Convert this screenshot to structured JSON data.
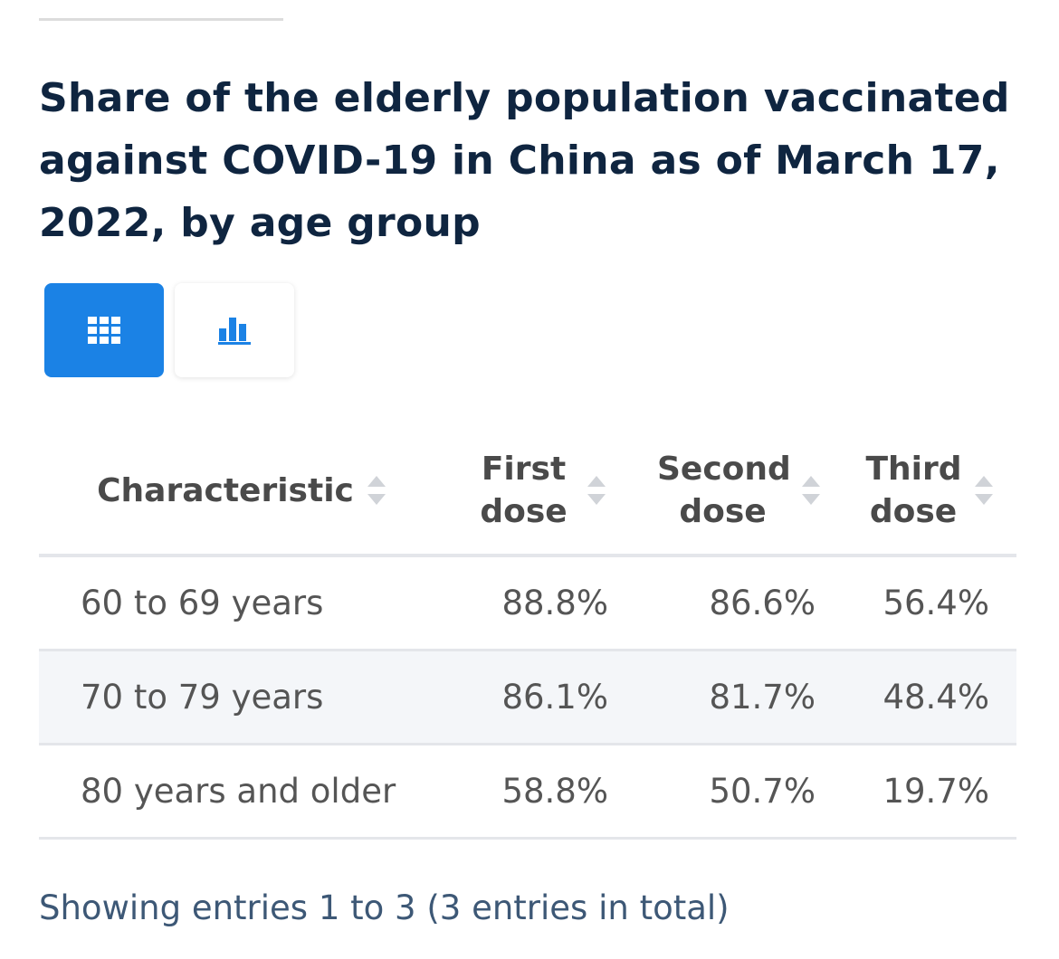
{
  "title": "Share of the elderly population vaccinated against COVID-19 in China as of March 17, 2022, by age group",
  "view_toggle": {
    "table_icon": "grid-icon",
    "chart_icon": "bar-chart-icon",
    "active": "table",
    "active_color": "#1b82e5"
  },
  "table": {
    "headers": [
      "Characteristic",
      "First dose",
      "Second dose",
      "Third dose"
    ],
    "rows": [
      [
        "60 to 69 years",
        "88.8%",
        "86.6%",
        "56.4%"
      ],
      [
        "70 to 79 years",
        "86.1%",
        "81.7%",
        "48.4%"
      ],
      [
        "80 years and older",
        "58.8%",
        "50.7%",
        "19.7%"
      ]
    ]
  },
  "footer": "Showing entries 1 to 3 (3 entries in total)",
  "chart_data": {
    "type": "table",
    "categories": [
      "60 to 69 years",
      "70 to 79 years",
      "80 years and older"
    ],
    "series": [
      {
        "name": "First dose",
        "values": [
          88.8,
          86.1,
          58.8
        ]
      },
      {
        "name": "Second dose",
        "values": [
          86.6,
          81.7,
          50.7
        ]
      },
      {
        "name": "Third dose",
        "values": [
          56.4,
          48.4,
          19.7
        ]
      }
    ],
    "unit": "%"
  }
}
